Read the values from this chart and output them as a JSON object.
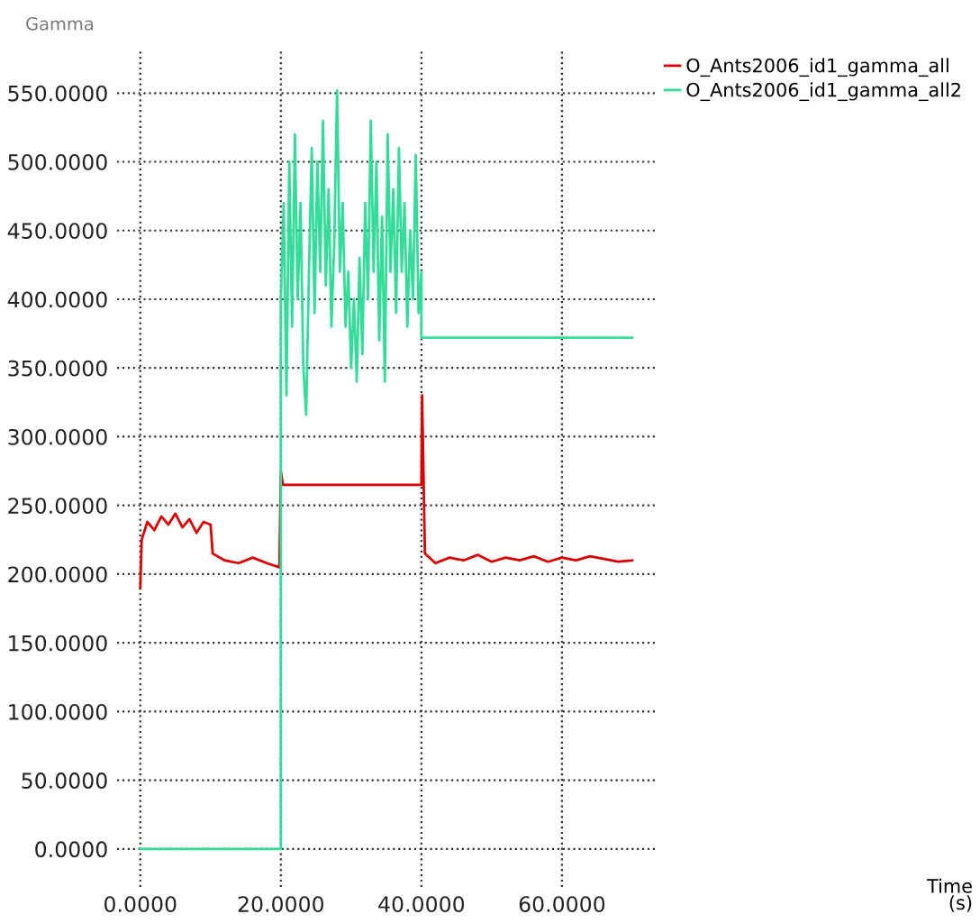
{
  "chart_data": {
    "type": "line",
    "ylabel": "Gamma",
    "annotations": [
      "Time\n(s)"
    ],
    "xlim": [
      -3.3,
      73.6
    ],
    "ylim": [
      -27.6,
      581
    ],
    "xticks": [
      {
        "value": 0,
        "label": "0.0000"
      },
      {
        "value": 20,
        "label": "20.0000"
      },
      {
        "value": 40,
        "label": "40.0000"
      },
      {
        "value": 60,
        "label": "60.0000"
      }
    ],
    "yticks": [
      {
        "value": 0,
        "label": "0.0000"
      },
      {
        "value": 50,
        "label": "50.0000"
      },
      {
        "value": 100,
        "label": "100.0000"
      },
      {
        "value": 150,
        "label": "150.0000"
      },
      {
        "value": 200,
        "label": "200.0000"
      },
      {
        "value": 250,
        "label": "250.0000"
      },
      {
        "value": 300,
        "label": "300.0000"
      },
      {
        "value": 350,
        "label": "350.0000"
      },
      {
        "value": 400,
        "label": "400.0000"
      },
      {
        "value": 450,
        "label": "450.0000"
      },
      {
        "value": 500,
        "label": "500.0000"
      },
      {
        "value": 550,
        "label": "550.0000"
      }
    ],
    "grid": true,
    "legend": "top right",
    "line_style": "solid",
    "series": [
      {
        "name": "O_Ants2006_id1_gamma_all",
        "color": "#dd0000",
        "x": [
          0,
          0.2,
          1,
          2,
          3,
          4,
          5,
          6,
          7,
          8,
          9,
          10,
          10.3,
          12,
          14,
          16,
          18,
          19.8,
          20,
          20.3,
          40,
          40.1,
          40.5,
          42,
          44,
          46,
          48,
          50,
          52,
          54,
          56,
          58,
          60,
          62,
          64,
          66,
          68,
          70
        ],
        "values": [
          190,
          225,
          238,
          232,
          242,
          236,
          244,
          234,
          240,
          230,
          238,
          236,
          215,
          210,
          208,
          212,
          208,
          205,
          275,
          265,
          265,
          330,
          215,
          208,
          212,
          210,
          214,
          209,
          212,
          210,
          213,
          209,
          212,
          210,
          213,
          211,
          209,
          210
        ]
      },
      {
        "name": "O_Ants2006_id1_gamma_all2",
        "color": "#33dd99",
        "x": [
          0,
          20,
          20,
          20.4,
          20.8,
          21.2,
          21.6,
          22,
          22.4,
          22.8,
          23.2,
          23.6,
          24,
          24.4,
          24.8,
          25.2,
          25.6,
          26,
          26.4,
          26.8,
          27.2,
          27.6,
          28,
          28.4,
          28.8,
          29.2,
          29.6,
          30,
          30.4,
          30.8,
          31.2,
          31.6,
          32,
          32.4,
          32.8,
          33.2,
          33.6,
          34,
          34.4,
          34.8,
          35.2,
          35.6,
          36,
          36.4,
          36.8,
          37.2,
          37.6,
          38,
          38.4,
          38.8,
          39.2,
          39.6,
          40,
          40,
          70
        ],
        "values": [
          0,
          0,
          400,
          470,
          330,
          500,
          380,
          520,
          400,
          470,
          350,
          316,
          420,
          510,
          390,
          500,
          420,
          530,
          410,
          480,
          380,
          440,
          552,
          420,
          470,
          380,
          420,
          350,
          400,
          340,
          430,
          360,
          470,
          400,
          530,
          420,
          500,
          370,
          460,
          340,
          520,
          420,
          480,
          390,
          510,
          420,
          470,
          380,
          450,
          400,
          505,
          390,
          420,
          372,
          372
        ]
      }
    ]
  }
}
